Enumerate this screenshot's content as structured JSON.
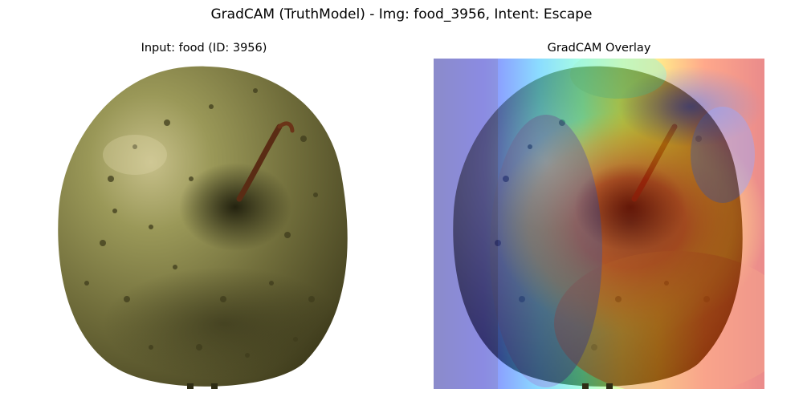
{
  "figure": {
    "title": "GradCAM (TruthModel) - Img: food_3956, Intent: Escape"
  },
  "panels": {
    "input": {
      "title": "Input: food (ID: 3956)"
    },
    "overlay": {
      "title": "GradCAM Overlay"
    }
  },
  "colors": {
    "background": "#ffffff",
    "potato_skin": "#8c8a4a",
    "potato_shadow": "#3c3a1e",
    "heatmap_low": "#00008c",
    "heatmap_high": "#d20000"
  },
  "icons": {
    "input_image": "potato-photo-icon",
    "overlay_image": "gradcam-heatmap-icon"
  }
}
